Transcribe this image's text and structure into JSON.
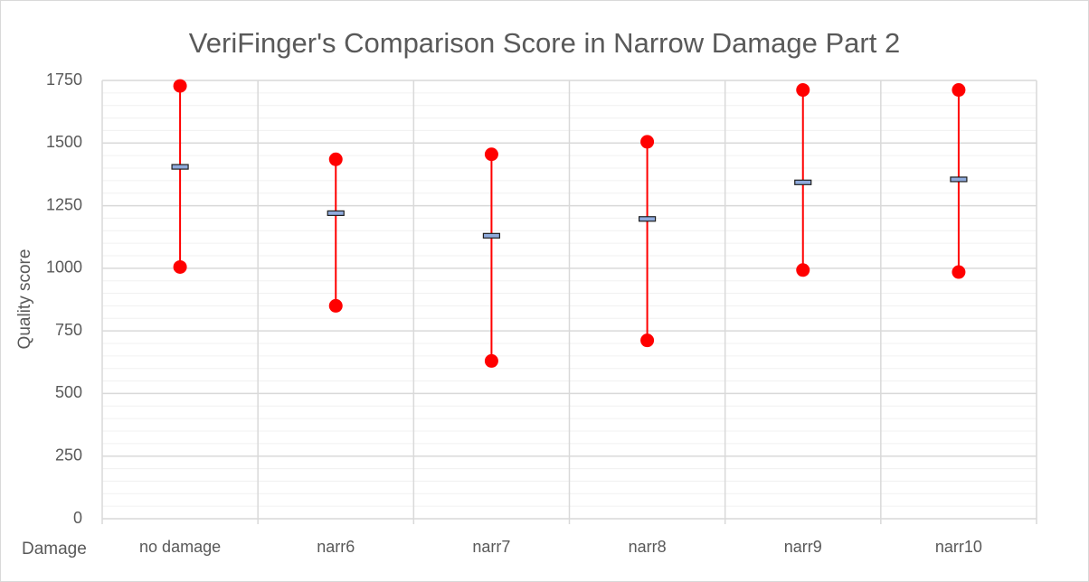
{
  "chart_data": {
    "type": "high-low",
    "title": "VeriFinger's Comparison Score in Narrow Damage Part 2",
    "y_label": "Quality score",
    "x_label": "Damage",
    "categories": [
      "no damage",
      "narr6",
      "narr7",
      "narr8",
      "narr9",
      "narr10"
    ],
    "high": [
      1728,
      1435,
      1455,
      1505,
      1712,
      1712
    ],
    "low": [
      1005,
      850,
      630,
      712,
      993,
      985
    ],
    "mean": [
      1405,
      1220,
      1130,
      1197,
      1343,
      1355
    ],
    "color": "#ff0000",
    "mean_color": "#8faadc",
    "ylim": [
      0,
      1750
    ],
    "yticks": [
      0,
      250,
      500,
      750,
      1000,
      1250,
      1500,
      1750
    ],
    "grid": true,
    "minor_grid": true
  }
}
